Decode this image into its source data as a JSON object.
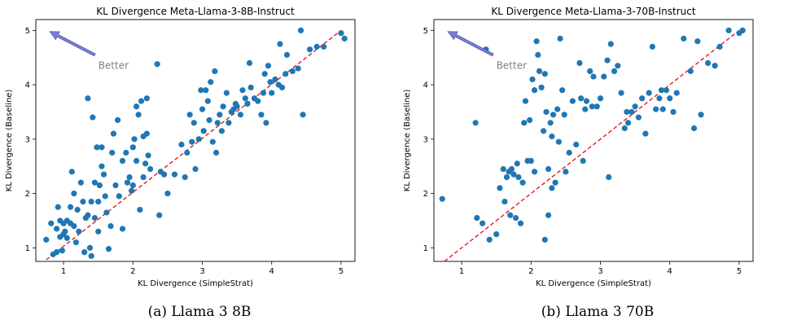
{
  "charts": [
    {
      "caption": "(a) Llama 3 8B"
    },
    {
      "caption": "(b) Llama 3 70B"
    }
  ],
  "chart_data": [
    {
      "type": "scatter",
      "title": "KL Divergence Meta-Llama-3-8B-Instruct",
      "xlabel": "KL Divergence (SimpleStrat)",
      "ylabel": "KL Divergence (Baseline)",
      "xlim": [
        0.6,
        5.2
      ],
      "ylim": [
        0.75,
        5.2
      ],
      "xticks": [
        1,
        2,
        3,
        4,
        5
      ],
      "yticks": [
        1,
        2,
        3,
        4,
        5
      ],
      "grid": false,
      "point_color": "#1f77b4",
      "reference_line": {
        "style": "dashed",
        "color": "#e41a1c",
        "from": [
          0.75,
          0.78
        ],
        "to": [
          5.0,
          5.0
        ]
      },
      "annotation": {
        "text": "Better",
        "text_at": [
          1.5,
          4.35
        ],
        "arrow_from": [
          1.45,
          4.55
        ],
        "arrow_to": [
          0.8,
          4.98
        ],
        "color": "#7b7bd6"
      },
      "points": [
        [
          0.75,
          1.15
        ],
        [
          0.82,
          1.45
        ],
        [
          0.85,
          0.88
        ],
        [
          0.9,
          1.35
        ],
        [
          0.9,
          0.92
        ],
        [
          0.92,
          1.75
        ],
        [
          0.95,
          1.5
        ],
        [
          0.95,
          1.2
        ],
        [
          0.98,
          0.95
        ],
        [
          1.0,
          1.45
        ],
        [
          1.0,
          1.25
        ],
        [
          1.02,
          1.3
        ],
        [
          1.05,
          1.5
        ],
        [
          1.05,
          1.18
        ],
        [
          1.1,
          1.45
        ],
        [
          1.1,
          1.75
        ],
        [
          1.12,
          2.4
        ],
        [
          1.15,
          1.4
        ],
        [
          1.15,
          2.0
        ],
        [
          1.18,
          1.1
        ],
        [
          1.2,
          1.7
        ],
        [
          1.22,
          1.3
        ],
        [
          1.25,
          2.2
        ],
        [
          1.28,
          1.85
        ],
        [
          1.3,
          0.92
        ],
        [
          1.32,
          1.55
        ],
        [
          1.35,
          1.6
        ],
        [
          1.35,
          3.75
        ],
        [
          1.38,
          1.0
        ],
        [
          1.4,
          1.85
        ],
        [
          1.4,
          0.85
        ],
        [
          1.42,
          3.4
        ],
        [
          1.45,
          1.55
        ],
        [
          1.45,
          2.2
        ],
        [
          1.48,
          2.85
        ],
        [
          1.5,
          1.3
        ],
        [
          1.5,
          1.85
        ],
        [
          1.52,
          2.15
        ],
        [
          1.55,
          2.5
        ],
        [
          1.55,
          2.85
        ],
        [
          1.58,
          2.35
        ],
        [
          1.6,
          1.95
        ],
        [
          1.62,
          1.65
        ],
        [
          1.65,
          0.98
        ],
        [
          1.68,
          1.4
        ],
        [
          1.7,
          2.75
        ],
        [
          1.72,
          3.1
        ],
        [
          1.75,
          2.15
        ],
        [
          1.78,
          3.35
        ],
        [
          1.8,
          1.95
        ],
        [
          1.85,
          1.35
        ],
        [
          1.85,
          2.6
        ],
        [
          1.9,
          2.75
        ],
        [
          1.92,
          2.2
        ],
        [
          1.95,
          2.3
        ],
        [
          1.98,
          2.05
        ],
        [
          2.0,
          2.15
        ],
        [
          2.0,
          2.85
        ],
        [
          2.02,
          3.0
        ],
        [
          2.05,
          2.6
        ],
        [
          2.05,
          3.6
        ],
        [
          2.08,
          3.45
        ],
        [
          2.1,
          1.7
        ],
        [
          2.12,
          3.7
        ],
        [
          2.15,
          2.3
        ],
        [
          2.15,
          3.05
        ],
        [
          2.18,
          2.55
        ],
        [
          2.2,
          3.1
        ],
        [
          2.2,
          3.75
        ],
        [
          2.22,
          2.7
        ],
        [
          2.25,
          2.45
        ],
        [
          2.35,
          4.38
        ],
        [
          2.38,
          1.6
        ],
        [
          2.4,
          2.4
        ],
        [
          2.45,
          2.35
        ],
        [
          2.5,
          2.0
        ],
        [
          2.6,
          2.35
        ],
        [
          2.7,
          2.9
        ],
        [
          2.75,
          2.3
        ],
        [
          2.78,
          2.75
        ],
        [
          2.82,
          3.45
        ],
        [
          2.85,
          2.95
        ],
        [
          2.88,
          3.3
        ],
        [
          2.9,
          2.45
        ],
        [
          2.95,
          3.0
        ],
        [
          2.98,
          3.9
        ],
        [
          3.0,
          3.55
        ],
        [
          3.02,
          3.15
        ],
        [
          3.05,
          3.9
        ],
        [
          3.08,
          3.7
        ],
        [
          3.1,
          3.35
        ],
        [
          3.12,
          4.05
        ],
        [
          3.15,
          2.95
        ],
        [
          3.18,
          4.25
        ],
        [
          3.2,
          2.75
        ],
        [
          3.22,
          3.3
        ],
        [
          3.25,
          3.45
        ],
        [
          3.28,
          3.15
        ],
        [
          3.3,
          3.6
        ],
        [
          3.35,
          3.85
        ],
        [
          3.38,
          3.3
        ],
        [
          3.42,
          3.5
        ],
        [
          3.45,
          3.55
        ],
        [
          3.48,
          3.65
        ],
        [
          3.5,
          3.6
        ],
        [
          3.55,
          3.45
        ],
        [
          3.58,
          3.9
        ],
        [
          3.62,
          3.75
        ],
        [
          3.65,
          3.65
        ],
        [
          3.68,
          4.4
        ],
        [
          3.7,
          3.95
        ],
        [
          3.75,
          3.75
        ],
        [
          3.8,
          3.7
        ],
        [
          3.85,
          3.45
        ],
        [
          3.88,
          3.85
        ],
        [
          3.9,
          4.2
        ],
        [
          3.92,
          3.3
        ],
        [
          3.95,
          4.35
        ],
        [
          3.98,
          4.05
        ],
        [
          4.0,
          3.85
        ],
        [
          4.05,
          4.1
        ],
        [
          4.1,
          4.0
        ],
        [
          4.12,
          4.75
        ],
        [
          4.15,
          3.95
        ],
        [
          4.2,
          4.2
        ],
        [
          4.22,
          4.55
        ],
        [
          4.3,
          4.25
        ],
        [
          4.38,
          4.3
        ],
        [
          4.42,
          5.0
        ],
        [
          4.45,
          3.45
        ],
        [
          4.55,
          4.65
        ],
        [
          4.65,
          4.7
        ],
        [
          4.75,
          4.7
        ],
        [
          5.0,
          4.95
        ],
        [
          5.05,
          4.85
        ]
      ]
    },
    {
      "type": "scatter",
      "title": "KL Divergence Meta-Llama-3-70B-Instruct",
      "xlabel": "KL Divergence (SimpleStrat)",
      "ylabel": "KL Divergence (Baseline)",
      "xlim": [
        0.6,
        5.2
      ],
      "ylim": [
        0.75,
        5.2
      ],
      "xticks": [
        1,
        2,
        3,
        4,
        5
      ],
      "yticks": [
        1,
        2,
        3,
        4,
        5
      ],
      "grid": false,
      "point_color": "#1f77b4",
      "reference_line": {
        "style": "dashed",
        "color": "#e41a1c",
        "from": [
          0.75,
          0.75
        ],
        "to": [
          5.0,
          5.0
        ]
      },
      "annotation": {
        "text": "Better",
        "text_at": [
          1.5,
          4.35
        ],
        "arrow_from": [
          1.45,
          4.55
        ],
        "arrow_to": [
          0.8,
          4.98
        ],
        "color": "#7b7bd6"
      },
      "points": [
        [
          0.72,
          1.9
        ],
        [
          1.2,
          3.3
        ],
        [
          1.22,
          1.55
        ],
        [
          1.3,
          1.45
        ],
        [
          1.35,
          4.65
        ],
        [
          1.4,
          1.15
        ],
        [
          1.5,
          1.25
        ],
        [
          1.55,
          2.1
        ],
        [
          1.6,
          2.45
        ],
        [
          1.62,
          1.85
        ],
        [
          1.65,
          2.3
        ],
        [
          1.68,
          2.4
        ],
        [
          1.7,
          1.6
        ],
        [
          1.72,
          2.45
        ],
        [
          1.75,
          2.35
        ],
        [
          1.78,
          1.55
        ],
        [
          1.8,
          2.55
        ],
        [
          1.82,
          2.3
        ],
        [
          1.85,
          1.45
        ],
        [
          1.88,
          2.2
        ],
        [
          1.9,
          3.3
        ],
        [
          1.92,
          3.7
        ],
        [
          1.95,
          2.6
        ],
        [
          1.98,
          3.35
        ],
        [
          2.0,
          2.6
        ],
        [
          2.02,
          4.1
        ],
        [
          2.05,
          2.4
        ],
        [
          2.05,
          3.9
        ],
        [
          2.08,
          4.8
        ],
        [
          2.1,
          4.55
        ],
        [
          2.12,
          4.25
        ],
        [
          2.15,
          3.95
        ],
        [
          2.18,
          3.15
        ],
        [
          2.2,
          4.2
        ],
        [
          2.2,
          1.15
        ],
        [
          2.22,
          3.5
        ],
        [
          2.25,
          1.6
        ],
        [
          2.25,
          2.45
        ],
        [
          2.28,
          3.3
        ],
        [
          2.3,
          2.1
        ],
        [
          2.3,
          3.05
        ],
        [
          2.32,
          3.45
        ],
        [
          2.35,
          2.2
        ],
        [
          2.38,
          3.55
        ],
        [
          2.4,
          2.95
        ],
        [
          2.42,
          4.85
        ],
        [
          2.45,
          3.9
        ],
        [
          2.48,
          3.45
        ],
        [
          2.5,
          2.4
        ],
        [
          2.55,
          2.75
        ],
        [
          2.6,
          3.7
        ],
        [
          2.65,
          2.9
        ],
        [
          2.7,
          4.4
        ],
        [
          2.72,
          3.75
        ],
        [
          2.75,
          2.6
        ],
        [
          2.78,
          3.55
        ],
        [
          2.8,
          3.7
        ],
        [
          2.85,
          4.25
        ],
        [
          2.88,
          3.6
        ],
        [
          2.9,
          4.15
        ],
        [
          2.95,
          3.6
        ],
        [
          3.0,
          3.75
        ],
        [
          3.05,
          4.15
        ],
        [
          3.1,
          4.45
        ],
        [
          3.12,
          2.3
        ],
        [
          3.15,
          4.75
        ],
        [
          3.2,
          4.25
        ],
        [
          3.25,
          4.35
        ],
        [
          3.3,
          3.85
        ],
        [
          3.35,
          3.2
        ],
        [
          3.38,
          3.5
        ],
        [
          3.4,
          3.3
        ],
        [
          3.45,
          3.5
        ],
        [
          3.5,
          3.6
        ],
        [
          3.55,
          3.4
        ],
        [
          3.6,
          3.75
        ],
        [
          3.65,
          3.1
        ],
        [
          3.7,
          3.85
        ],
        [
          3.75,
          4.7
        ],
        [
          3.8,
          3.55
        ],
        [
          3.85,
          3.75
        ],
        [
          3.88,
          3.9
        ],
        [
          3.9,
          3.55
        ],
        [
          3.95,
          3.9
        ],
        [
          4.0,
          3.75
        ],
        [
          4.05,
          3.5
        ],
        [
          4.1,
          3.85
        ],
        [
          4.2,
          4.85
        ],
        [
          4.3,
          4.25
        ],
        [
          4.35,
          3.2
        ],
        [
          4.4,
          4.8
        ],
        [
          4.45,
          3.45
        ],
        [
          4.55,
          4.4
        ],
        [
          4.65,
          4.35
        ],
        [
          4.72,
          4.7
        ],
        [
          4.85,
          5.0
        ],
        [
          5.0,
          4.95
        ],
        [
          5.05,
          5.0
        ]
      ]
    }
  ]
}
